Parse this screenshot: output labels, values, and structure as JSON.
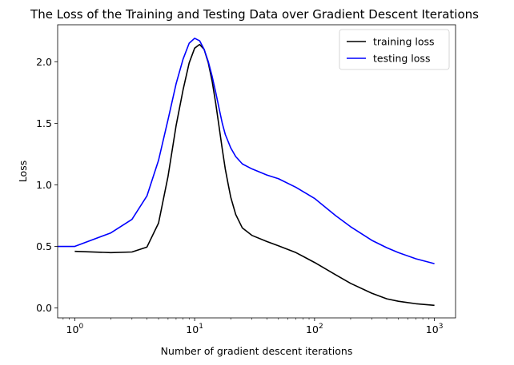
{
  "chart_data": {
    "type": "line",
    "title": "The Loss of the Training and Testing Data over Gradient Descent Iterations",
    "xlabel": "Number of gradient descent iterations",
    "ylabel": "Loss",
    "xscale": "log",
    "xlim": [
      0.72,
      1500
    ],
    "ylim": [
      -0.08,
      2.3
    ],
    "xticks": [
      {
        "value": 1,
        "base": "10",
        "exp": "0"
      },
      {
        "value": 10,
        "base": "10",
        "exp": "1"
      },
      {
        "value": 100,
        "base": "10",
        "exp": "2"
      },
      {
        "value": 1000,
        "base": "10",
        "exp": "3"
      }
    ],
    "yticks": [
      {
        "value": 0.0,
        "label": "0.0"
      },
      {
        "value": 0.5,
        "label": "0.5"
      },
      {
        "value": 1.0,
        "label": "1.0"
      },
      {
        "value": 1.5,
        "label": "1.5"
      },
      {
        "value": 2.0,
        "label": "2.0"
      }
    ],
    "grid": false,
    "legend_position": "top-right",
    "series": [
      {
        "name": "training loss",
        "color": "#000000",
        "x": [
          1,
          2,
          3,
          4,
          5,
          6,
          7,
          8,
          9,
          10,
          11,
          12,
          13,
          14,
          15,
          16,
          17,
          18,
          19,
          20,
          22,
          25,
          30,
          40,
          50,
          70,
          100,
          150,
          200,
          300,
          400,
          500,
          700,
          1000
        ],
        "y": [
          0.46,
          0.45,
          0.455,
          0.495,
          0.69,
          1.07,
          1.48,
          1.77,
          1.99,
          2.11,
          2.14,
          2.1,
          1.99,
          1.84,
          1.66,
          1.47,
          1.29,
          1.13,
          1.01,
          0.9,
          0.76,
          0.65,
          0.59,
          0.54,
          0.505,
          0.45,
          0.37,
          0.27,
          0.2,
          0.12,
          0.075,
          0.055,
          0.035,
          0.022
        ]
      },
      {
        "name": "testing loss",
        "color": "#0000ff",
        "x": [
          0.72,
          1,
          2,
          3,
          4,
          5,
          6,
          7,
          8,
          9,
          10,
          11,
          12,
          13,
          14,
          15,
          16,
          17,
          18,
          20,
          22,
          25,
          30,
          40,
          50,
          70,
          100,
          150,
          200,
          300,
          400,
          500,
          700,
          1000
        ],
        "y": [
          0.5,
          0.5,
          0.61,
          0.72,
          0.91,
          1.2,
          1.53,
          1.82,
          2.02,
          2.15,
          2.19,
          2.17,
          2.1,
          2.0,
          1.88,
          1.75,
          1.62,
          1.5,
          1.41,
          1.3,
          1.23,
          1.17,
          1.13,
          1.08,
          1.05,
          0.98,
          0.89,
          0.75,
          0.66,
          0.55,
          0.49,
          0.45,
          0.4,
          0.36
        ]
      }
    ]
  }
}
